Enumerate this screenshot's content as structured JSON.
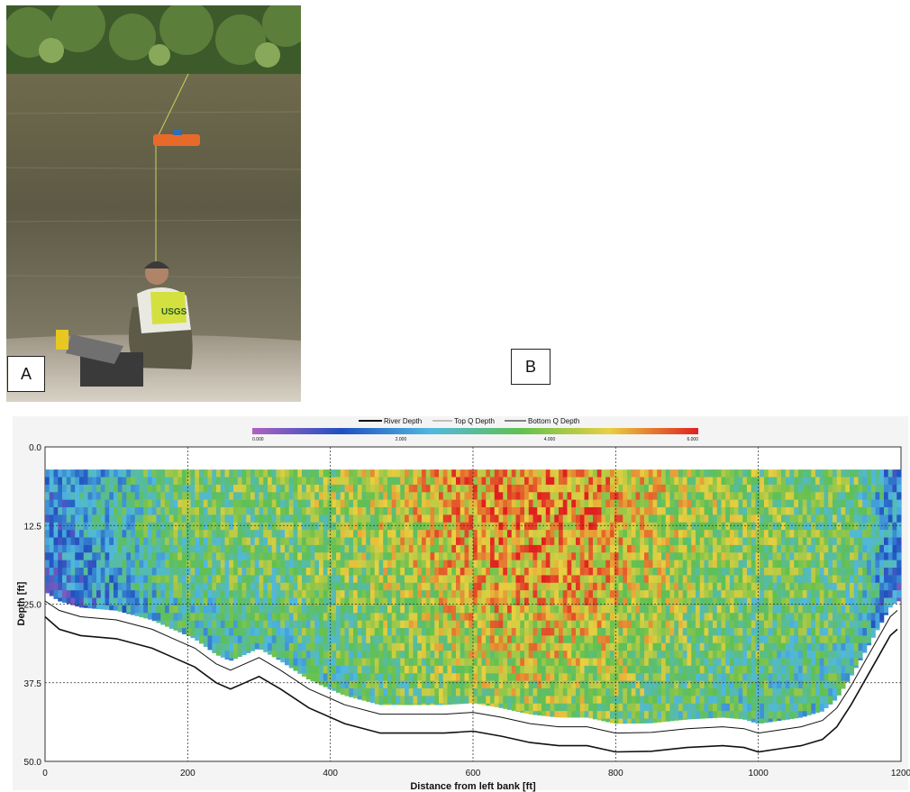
{
  "panels": {
    "a_label": "A",
    "b_label": "B"
  },
  "photo": {
    "vest_text": "USGS"
  },
  "chart_data": {
    "type": "heatmap",
    "title": "",
    "xlabel": "Distance from left bank [ft]",
    "ylabel": "Depth [ft]",
    "xlim": [
      0,
      1200
    ],
    "ylim": [
      50.0,
      0.0
    ],
    "x_ticks": [
      "0",
      "200",
      "400",
      "600",
      "800",
      "1000",
      "1200"
    ],
    "y_ticks": [
      "0.0",
      "12.5",
      "25.0",
      "37.5",
      "50.0"
    ],
    "grid": true,
    "legend": {
      "placement": "top-center",
      "entries": [
        "River Depth",
        "Top Q Depth",
        "Bottom Q Depth"
      ]
    },
    "colorbar": {
      "ticks": [
        "0.000",
        "2.000",
        "4.000",
        "6.000"
      ],
      "range": [
        0,
        6
      ],
      "colors": [
        "#b060c0",
        "#2050c0",
        "#50b8e0",
        "#60c050",
        "#e8d040",
        "#e02020"
      ]
    },
    "series": [
      {
        "name": "River Depth",
        "color": "#111111",
        "x": [
          0,
          20,
          50,
          100,
          150,
          180,
          210,
          240,
          260,
          280,
          300,
          330,
          370,
          420,
          470,
          520,
          560,
          600,
          640,
          680,
          720,
          760,
          800,
          850,
          900,
          950,
          980,
          1000,
          1030,
          1060,
          1090,
          1110,
          1130,
          1150,
          1170,
          1185,
          1195
        ],
        "y": [
          27.0,
          29.0,
          30.0,
          30.5,
          32.0,
          33.5,
          35.0,
          37.5,
          38.5,
          37.5,
          36.5,
          38.5,
          41.5,
          44.0,
          45.5,
          45.5,
          45.5,
          45.2,
          46.0,
          47.0,
          47.5,
          47.5,
          48.5,
          48.4,
          47.8,
          47.5,
          47.8,
          48.5,
          48.0,
          47.5,
          46.5,
          44.5,
          41.0,
          37.0,
          33.0,
          30.0,
          29.0
        ]
      },
      {
        "name": "Top Q Depth",
        "color": "#555555",
        "x": [
          0,
          1200
        ],
        "y": [
          3.6,
          3.6
        ]
      },
      {
        "name": "Bottom Q Depth",
        "color": "#111111",
        "x": [
          0,
          20,
          50,
          100,
          150,
          180,
          210,
          240,
          260,
          280,
          300,
          330,
          370,
          420,
          470,
          520,
          560,
          600,
          640,
          680,
          720,
          760,
          800,
          850,
          900,
          950,
          980,
          1000,
          1030,
          1060,
          1090,
          1110,
          1130,
          1150,
          1170,
          1185,
          1195
        ],
        "y": [
          24.5,
          26.0,
          27.0,
          27.5,
          29.0,
          30.5,
          32.0,
          34.5,
          35.5,
          34.5,
          33.5,
          35.5,
          38.5,
          41.0,
          42.5,
          42.5,
          42.5,
          42.2,
          43.0,
          44.0,
          44.5,
          44.5,
          45.5,
          45.4,
          44.8,
          44.5,
          44.8,
          45.5,
          45.0,
          44.5,
          43.5,
          41.5,
          38.0,
          34.0,
          30.0,
          27.0,
          26.0
        ]
      }
    ]
  }
}
